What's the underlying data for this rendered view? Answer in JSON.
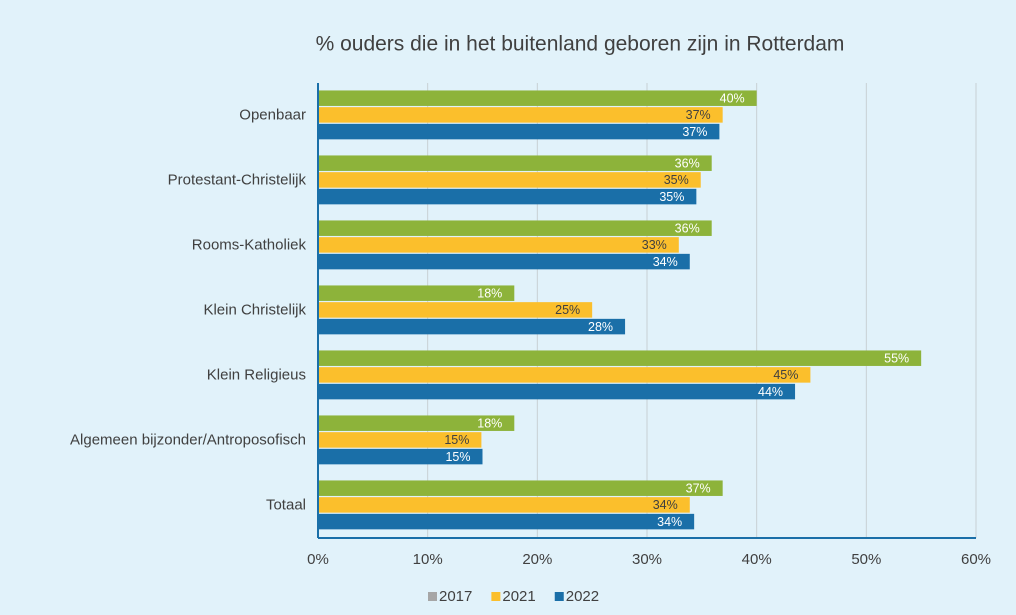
{
  "chart_data": {
    "type": "hbar",
    "title": "% ouders die in het buitenland geboren zijn in Rotterdam",
    "categories": [
      "Openbaar",
      "Protestant-Christelijk",
      "Rooms-Katholiek",
      "Klein Christelijk",
      "Klein Religieus",
      "Algemeen bijzonder/Antroposofisch",
      "Totaal"
    ],
    "series": [
      {
        "name": "2017",
        "color": "#8db33a",
        "legend_color": "#a6a6a6",
        "label_color": "#ffffff",
        "values": [
          40.0,
          35.9,
          35.9,
          17.9,
          55.0,
          17.9,
          36.9
        ],
        "value_labels": [
          "40%",
          "36%",
          "36%",
          "18%",
          "55%",
          "18%",
          "37%"
        ]
      },
      {
        "name": "2021",
        "color": "#fbbf2c",
        "legend_color": "#fbbf2c",
        "label_color": "#404040",
        "values": [
          36.9,
          34.9,
          32.9,
          25.0,
          44.9,
          14.9,
          33.9
        ],
        "value_labels": [
          "37%",
          "35%",
          "33%",
          "25%",
          "45%",
          "15%",
          "34%"
        ]
      },
      {
        "name": "2022",
        "color": "#1a6fa8",
        "legend_color": "#1a6fa8",
        "label_color": "#ffffff",
        "values": [
          36.6,
          34.5,
          33.9,
          28.0,
          43.5,
          15.0,
          34.3
        ],
        "value_labels": [
          "37%",
          "35%",
          "34%",
          "28%",
          "44%",
          "15%",
          "34%"
        ]
      }
    ],
    "xlim": [
      0,
      60
    ],
    "xticks": [
      {
        "value": 0,
        "label": "0%"
      },
      {
        "value": 10,
        "label": "10%"
      },
      {
        "value": 20,
        "label": "20%"
      },
      {
        "value": 30,
        "label": "30%"
      },
      {
        "value": 40,
        "label": "40%"
      },
      {
        "value": 50,
        "label": "50%"
      },
      {
        "value": 60,
        "label": "60%"
      }
    ],
    "grid": true,
    "legend": "bottom"
  }
}
